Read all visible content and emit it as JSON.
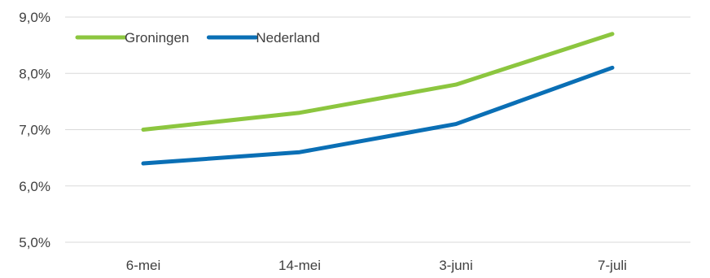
{
  "chart_data": {
    "type": "line",
    "title": "",
    "xlabel": "",
    "ylabel": "",
    "categories": [
      "6-mei",
      "14-mei",
      "3-juni",
      "7-juli"
    ],
    "ylim": [
      5.0,
      9.0
    ],
    "y_ticks": [
      5.0,
      6.0,
      7.0,
      8.0,
      9.0
    ],
    "y_tick_labels": [
      "5,0%",
      "6,0%",
      "7,0%",
      "8,0%",
      "9,0%"
    ],
    "grid": true,
    "legend_position": "top-left",
    "series": [
      {
        "name": "Groningen",
        "color": "#8cc63f",
        "values": [
          7.0,
          7.3,
          7.8,
          8.7
        ]
      },
      {
        "name": "Nederland",
        "color": "#0a6fb5",
        "values": [
          6.4,
          6.6,
          7.1,
          8.1
        ]
      }
    ]
  }
}
